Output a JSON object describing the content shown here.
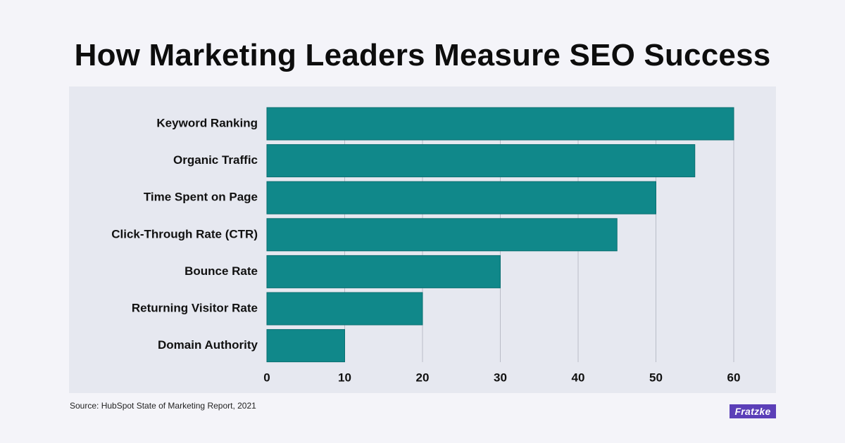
{
  "header": {
    "title": "How Marketing Leaders Measure SEO Success"
  },
  "footer": {
    "source": "Source: HubSpot State of Marketing Report, 2021",
    "brand": "Fratzke"
  },
  "colors": {
    "bar": "#10888a",
    "bar_stroke": "#0b6f71",
    "panel": "#e6e8f0",
    "grid": "#b9bcc7",
    "text": "#111111",
    "brand": "#5b3fb8"
  },
  "chart_data": {
    "type": "bar",
    "orientation": "horizontal",
    "title": "How Marketing Leaders Measure SEO Success",
    "categories": [
      "Keyword Ranking",
      "Organic Traffic",
      "Time Spent on Page",
      "Click-Through Rate (CTR)",
      "Bounce Rate",
      "Returning Visitor Rate",
      "Domain Authority"
    ],
    "values": [
      60,
      55,
      50,
      45,
      30,
      20,
      10
    ],
    "xlabel": "",
    "ylabel": "",
    "xlim": [
      0,
      60
    ],
    "xticks": [
      0,
      10,
      20,
      30,
      40,
      50,
      60
    ],
    "xtick_labels": [
      "0",
      "10",
      "20",
      "30",
      "40",
      "50",
      "60"
    ],
    "grid": "vertical",
    "legend": "none"
  }
}
